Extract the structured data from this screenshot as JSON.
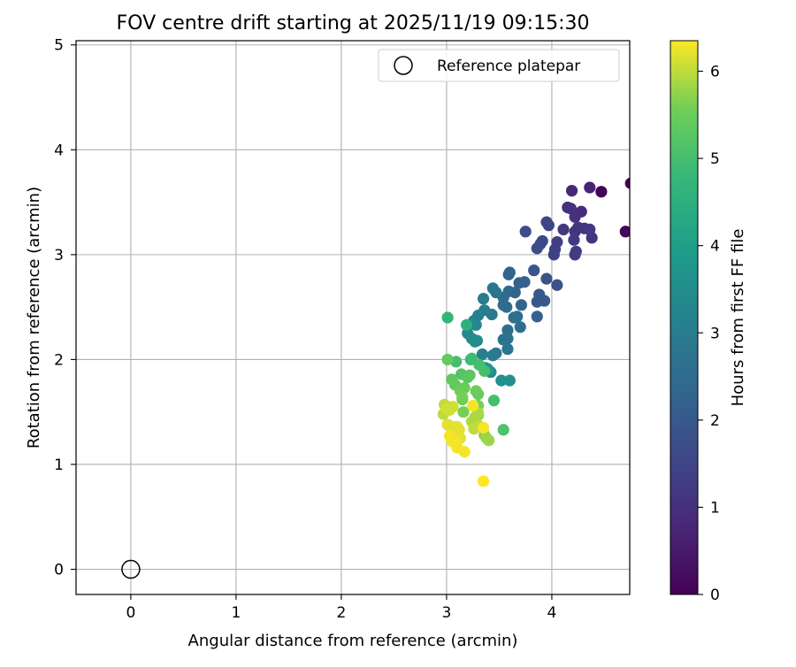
{
  "chart_data": {
    "type": "scatter",
    "title": "FOV centre drift starting at 2025/11/19 09:15:30",
    "xlabel": "Angular distance from reference (arcmin)",
    "ylabel": "Rotation from reference (arcmin)",
    "xlim": [
      -0.52,
      4.74
    ],
    "ylim": [
      -0.24,
      5.04
    ],
    "xticks": [
      0,
      1,
      2,
      3,
      4
    ],
    "yticks": [
      0,
      1,
      2,
      3,
      4,
      5
    ],
    "grid": true,
    "legend": {
      "position": "top-right",
      "entries": [
        "Reference platepar"
      ]
    },
    "reference_point": {
      "x": 0,
      "y": 0,
      "label": "Reference platepar"
    },
    "colorbar": {
      "label": "Hours from first FF file",
      "colormap": "viridis",
      "range": [
        0,
        6.35
      ],
      "ticks": [
        0,
        1,
        2,
        3,
        4,
        5,
        6
      ]
    },
    "points": [
      [
        4.47,
        3.6,
        0.05
      ],
      [
        4.75,
        3.68,
        0.05
      ],
      [
        4.7,
        3.22,
        0.1
      ],
      [
        4.36,
        3.64,
        0.7
      ],
      [
        4.19,
        3.61,
        0.8
      ],
      [
        4.28,
        3.41,
        0.9
      ],
      [
        4.15,
        3.45,
        1.0
      ],
      [
        4.18,
        3.44,
        1.0
      ],
      [
        4.22,
        3.36,
        1.0
      ],
      [
        4.31,
        3.25,
        1.1
      ],
      [
        4.38,
        3.16,
        1.1
      ],
      [
        4.22,
        3.22,
        1.1
      ],
      [
        4.21,
        3.14,
        1.2
      ],
      [
        4.11,
        3.24,
        1.2
      ],
      [
        4.36,
        3.24,
        1.2
      ],
      [
        4.25,
        3.26,
        1.1
      ],
      [
        4.23,
        3.03,
        1.3
      ],
      [
        4.22,
        3.0,
        1.3
      ],
      [
        4.03,
        3.05,
        1.4
      ],
      [
        4.02,
        3.0,
        1.4
      ],
      [
        4.05,
        3.12,
        1.4
      ],
      [
        3.95,
        3.31,
        1.5
      ],
      [
        3.97,
        3.28,
        1.5
      ],
      [
        3.89,
        3.1,
        1.6
      ],
      [
        3.91,
        3.13,
        1.6
      ],
      [
        3.86,
        3.06,
        1.7
      ],
      [
        3.75,
        3.22,
        1.7
      ],
      [
        3.95,
        2.77,
        1.8
      ],
      [
        4.05,
        2.71,
        1.8
      ],
      [
        3.83,
        2.85,
        1.9
      ],
      [
        3.88,
        2.62,
        2.0
      ],
      [
        3.9,
        2.57,
        2.0
      ],
      [
        3.86,
        2.55,
        2.0
      ],
      [
        3.93,
        2.56,
        2.0
      ],
      [
        3.86,
        2.41,
        2.2
      ],
      [
        3.74,
        2.74,
        2.2
      ],
      [
        3.69,
        2.73,
        2.2
      ],
      [
        3.71,
        2.52,
        2.3
      ],
      [
        3.65,
        2.64,
        2.3
      ],
      [
        3.59,
        2.81,
        2.3
      ],
      [
        3.6,
        2.83,
        2.3
      ],
      [
        3.59,
        2.65,
        2.4
      ],
      [
        3.54,
        2.59,
        2.5
      ],
      [
        3.57,
        2.5,
        2.5
      ],
      [
        3.54,
        2.52,
        2.5
      ],
      [
        3.67,
        2.41,
        2.5
      ],
      [
        3.7,
        2.31,
        2.6
      ],
      [
        3.64,
        2.4,
        2.6
      ],
      [
        3.58,
        2.28,
        2.6
      ],
      [
        3.58,
        2.2,
        2.7
      ],
      [
        3.54,
        2.19,
        2.7
      ],
      [
        3.58,
        2.1,
        2.8
      ],
      [
        3.47,
        2.64,
        2.8
      ],
      [
        3.44,
        2.68,
        2.8
      ],
      [
        3.43,
        2.43,
        2.9
      ],
      [
        3.47,
        2.06,
        2.9
      ],
      [
        3.44,
        2.04,
        3.0
      ],
      [
        3.35,
        2.58,
        3.0
      ],
      [
        3.36,
        2.47,
        3.0
      ],
      [
        3.3,
        2.42,
        3.1
      ],
      [
        3.34,
        2.05,
        3.1
      ],
      [
        3.26,
        2.37,
        3.2
      ],
      [
        3.28,
        2.33,
        3.3
      ],
      [
        3.24,
        2.34,
        3.3
      ],
      [
        3.2,
        2.25,
        3.4
      ],
      [
        3.24,
        2.2,
        3.4
      ],
      [
        3.29,
        2.18,
        3.4
      ],
      [
        3.27,
        2.17,
        3.5
      ],
      [
        3.37,
        1.92,
        3.5
      ],
      [
        3.42,
        1.88,
        3.5
      ],
      [
        3.52,
        1.8,
        3.6
      ],
      [
        3.6,
        1.8,
        3.6
      ],
      [
        3.39,
        1.91,
        3.8
      ],
      [
        3.19,
        2.33,
        4.5
      ],
      [
        3.01,
        2.4,
        4.7
      ],
      [
        3.23,
        2.0,
        4.8
      ],
      [
        3.24,
        2.01,
        4.9
      ],
      [
        3.09,
        1.98,
        5.0
      ],
      [
        3.36,
        1.89,
        5.0
      ],
      [
        3.31,
        1.95,
        5.0
      ],
      [
        3.45,
        1.61,
        5.0
      ],
      [
        3.54,
        1.33,
        5.1
      ],
      [
        3.2,
        1.83,
        5.2
      ],
      [
        3.14,
        1.86,
        5.2
      ],
      [
        3.22,
        1.85,
        5.3
      ],
      [
        3.05,
        1.81,
        5.3
      ],
      [
        3.01,
        2.0,
        5.4
      ],
      [
        3.08,
        1.76,
        5.4
      ],
      [
        3.13,
        1.7,
        5.5
      ],
      [
        3.17,
        1.73,
        5.5
      ],
      [
        3.15,
        1.62,
        5.5
      ],
      [
        3.28,
        1.7,
        5.5
      ],
      [
        3.3,
        1.67,
        5.5
      ],
      [
        3.15,
        1.64,
        5.6
      ],
      [
        3.16,
        1.5,
        5.6
      ],
      [
        3.3,
        1.56,
        5.6
      ],
      [
        3.3,
        1.47,
        5.7
      ],
      [
        3.28,
        1.39,
        5.7
      ],
      [
        3.36,
        1.28,
        5.7
      ],
      [
        3.38,
        1.25,
        5.8
      ],
      [
        3.4,
        1.23,
        5.8
      ],
      [
        3.24,
        1.41,
        5.9
      ],
      [
        3.27,
        1.45,
        5.9
      ],
      [
        3.3,
        1.49,
        5.9
      ],
      [
        3.26,
        1.34,
        6.0
      ],
      [
        3.32,
        1.36,
        6.0
      ],
      [
        2.98,
        1.57,
        6.0
      ],
      [
        2.97,
        1.48,
        6.0
      ],
      [
        3.0,
        1.53,
        6.1
      ],
      [
        3.06,
        1.55,
        6.1
      ],
      [
        3.03,
        1.52,
        6.1
      ],
      [
        3.01,
        1.38,
        6.2
      ],
      [
        3.05,
        1.36,
        6.2
      ],
      [
        3.08,
        1.31,
        6.2
      ],
      [
        3.1,
        1.36,
        6.2
      ],
      [
        3.12,
        1.33,
        6.2
      ],
      [
        3.13,
        1.25,
        6.2
      ],
      [
        3.09,
        1.21,
        6.3
      ],
      [
        3.05,
        1.22,
        6.3
      ],
      [
        3.03,
        1.27,
        6.3
      ],
      [
        3.1,
        1.16,
        6.3
      ],
      [
        3.17,
        1.12,
        6.3
      ],
      [
        3.25,
        1.56,
        6.3
      ],
      [
        3.35,
        1.35,
        6.3
      ],
      [
        3.35,
        0.84,
        6.35
      ]
    ]
  }
}
